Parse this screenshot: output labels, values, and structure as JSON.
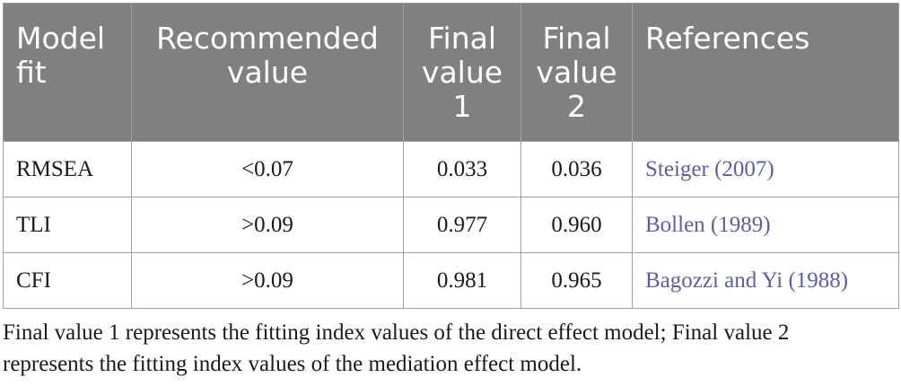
{
  "table": {
    "headers": [
      {
        "lines": [
          "Model",
          "fit"
        ]
      },
      {
        "lines": [
          "Recommended",
          "value"
        ]
      },
      {
        "lines": [
          "Final",
          "value",
          "1"
        ]
      },
      {
        "lines": [
          "Final",
          "value",
          "2"
        ]
      },
      {
        "lines": [
          "References"
        ]
      }
    ],
    "rows": [
      {
        "model_fit": "RMSEA",
        "recommended": "<0.07",
        "final1": "0.033",
        "final2": "0.036",
        "reference": "Steiger (2007)"
      },
      {
        "model_fit": "TLI",
        "recommended": ">0.09",
        "final1": "0.977",
        "final2": "0.960",
        "reference": "Bollen (1989)"
      },
      {
        "model_fit": "CFI",
        "recommended": ">0.09",
        "final1": "0.981",
        "final2": "0.965",
        "reference": "Bagozzi and Yi (1988)"
      }
    ]
  },
  "footnote": {
    "line1": "Final value 1 represents the fitting index values of the direct effect model; Final value 2",
    "line2": "represents the fitting index values of the mediation effect model."
  },
  "colors": {
    "header_bg": "#808080",
    "header_text": "#ffffff",
    "border": "#a0a0a0",
    "reference_link": "#5b5ea6"
  }
}
